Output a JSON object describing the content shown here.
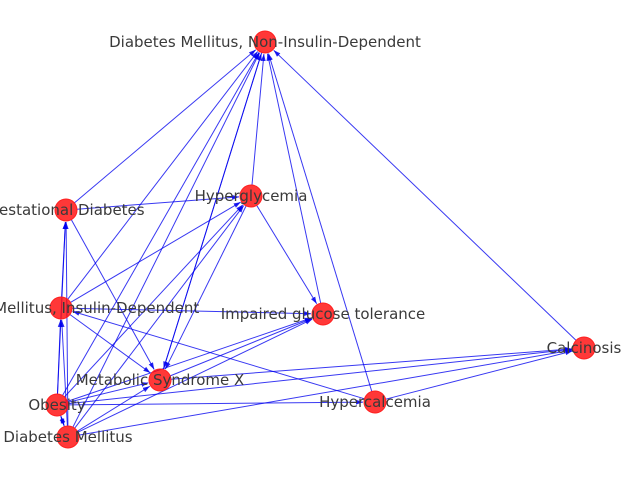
{
  "graph": {
    "nodes": [
      {
        "id": "dm2",
        "label": "Diabetes Mellitus, Non-Insulin-Dependent"
      },
      {
        "id": "hyperglycemia",
        "label": "Hyperglycemia"
      },
      {
        "id": "gestational",
        "label": "Gestational Diabetes"
      },
      {
        "id": "dm1",
        "label": "Diabetes Mellitus, Insulin-Dependent"
      },
      {
        "id": "igt",
        "label": "Impaired glucose tolerance"
      },
      {
        "id": "calcinosis",
        "label": "Calcinosis"
      },
      {
        "id": "metsyn",
        "label": "Metabolic Syndrome X"
      },
      {
        "id": "obesity",
        "label": "Obesity"
      },
      {
        "id": "hypercalcemia",
        "label": "Hypercalcemia"
      },
      {
        "id": "dm",
        "label": "Diabetes Mellitus"
      }
    ],
    "edges": [
      [
        "gestational",
        "dm2"
      ],
      [
        "gestational",
        "hyperglycemia"
      ],
      [
        "gestational",
        "metsyn"
      ],
      [
        "dm1",
        "dm2"
      ],
      [
        "dm1",
        "hyperglycemia"
      ],
      [
        "dm1",
        "igt"
      ],
      [
        "dm1",
        "metsyn"
      ],
      [
        "dm1",
        "gestational"
      ],
      [
        "hyperglycemia",
        "dm2"
      ],
      [
        "hyperglycemia",
        "igt"
      ],
      [
        "hyperglycemia",
        "metsyn"
      ],
      [
        "obesity",
        "dm2"
      ],
      [
        "obesity",
        "hyperglycemia"
      ],
      [
        "obesity",
        "dm1"
      ],
      [
        "obesity",
        "gestational"
      ],
      [
        "obesity",
        "metsyn"
      ],
      [
        "obesity",
        "igt"
      ],
      [
        "obesity",
        "calcinosis"
      ],
      [
        "obesity",
        "hypercalcemia"
      ],
      [
        "obesity",
        "dm"
      ],
      [
        "dm",
        "dm2"
      ],
      [
        "dm",
        "hyperglycemia"
      ],
      [
        "dm",
        "dm1"
      ],
      [
        "dm",
        "gestational"
      ],
      [
        "dm",
        "metsyn"
      ],
      [
        "dm",
        "igt"
      ],
      [
        "dm",
        "calcinosis"
      ],
      [
        "dm",
        "obesity"
      ],
      [
        "metsyn",
        "dm2"
      ],
      [
        "metsyn",
        "igt"
      ],
      [
        "metsyn",
        "calcinosis"
      ],
      [
        "igt",
        "dm2"
      ],
      [
        "calcinosis",
        "dm2"
      ],
      [
        "hypercalcemia",
        "dm2"
      ],
      [
        "hypercalcemia",
        "dm1"
      ],
      [
        "hypercalcemia",
        "calcinosis"
      ],
      [
        "dm2",
        "metsyn"
      ]
    ]
  },
  "colors": {
    "node_fill": "#ff0000",
    "edge": "#0000ee",
    "label_text": "#3a3a3a"
  }
}
